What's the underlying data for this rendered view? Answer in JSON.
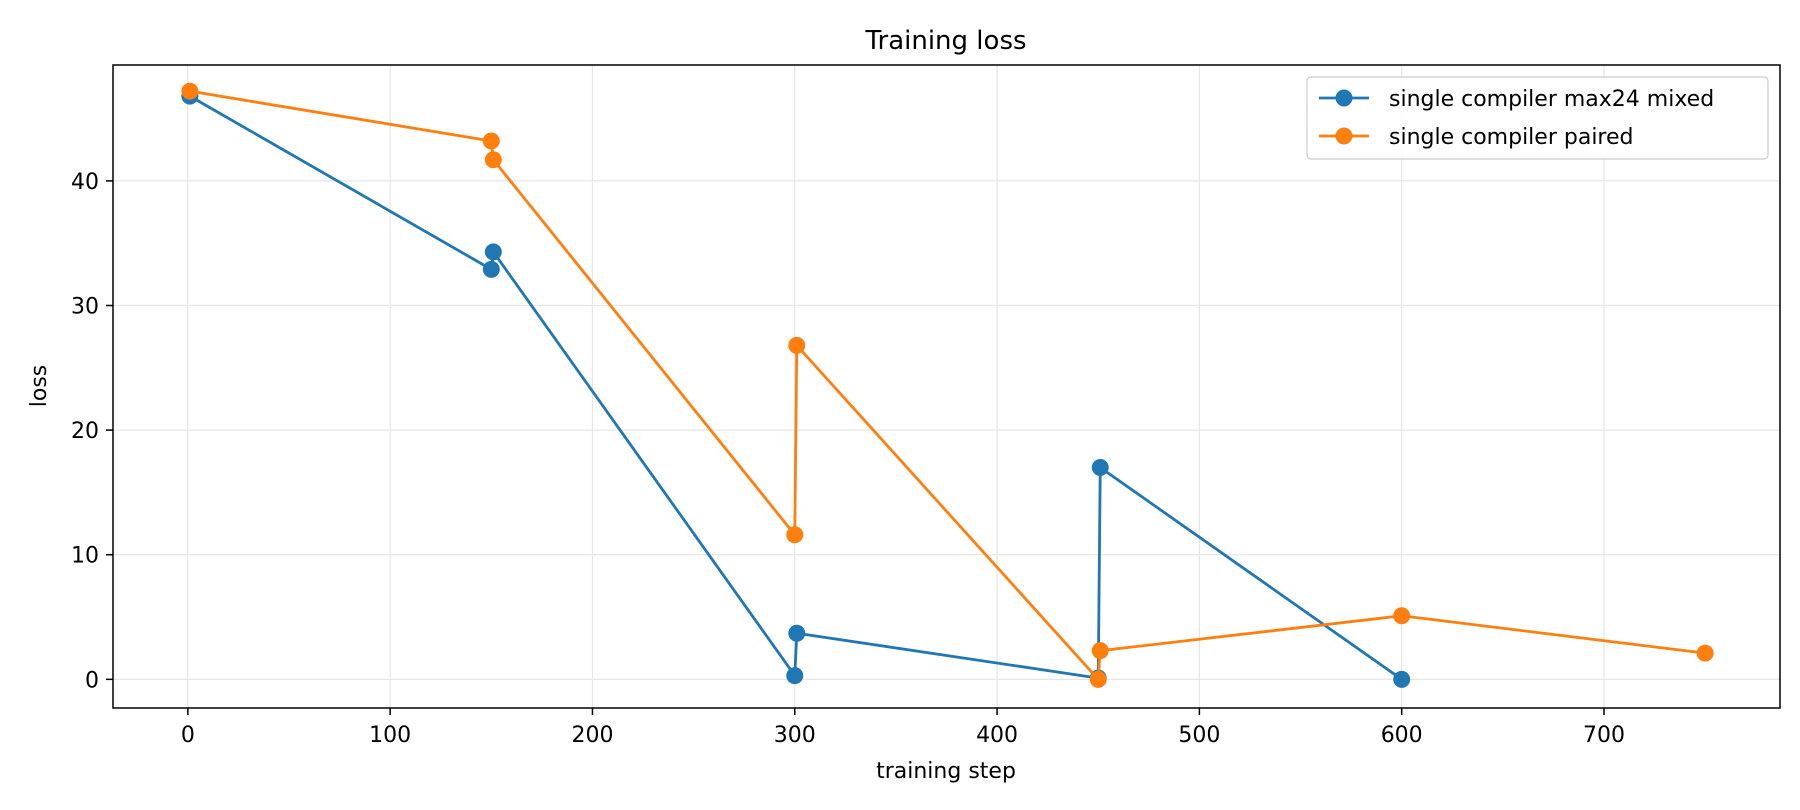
{
  "chart_data": {
    "type": "line",
    "title": "Training loss",
    "xlabel": "training step",
    "ylabel": "loss",
    "xlim": [
      -37,
      787
    ],
    "ylim": [
      -2.3,
      49.3
    ],
    "x_ticks": [
      0,
      100,
      200,
      300,
      400,
      500,
      600,
      700
    ],
    "y_ticks": [
      0,
      10,
      20,
      30,
      40
    ],
    "grid": true,
    "legend_position": "top-right",
    "series": [
      {
        "name": "single compiler max24 mixed",
        "color": "#1f77b4",
        "x": [
          1,
          150,
          151,
          300,
          301,
          450,
          451,
          600
        ],
        "y": [
          46.8,
          32.9,
          34.3,
          0.3,
          3.7,
          0.1,
          17.0,
          0.0
        ]
      },
      {
        "name": "single compiler paired",
        "color": "#ff7f0e",
        "x": [
          1,
          150,
          151,
          300,
          301,
          450,
          451,
          600,
          750
        ],
        "y": [
          47.2,
          43.2,
          41.7,
          11.6,
          26.8,
          0.0,
          2.3,
          5.1,
          2.1
        ]
      }
    ]
  }
}
